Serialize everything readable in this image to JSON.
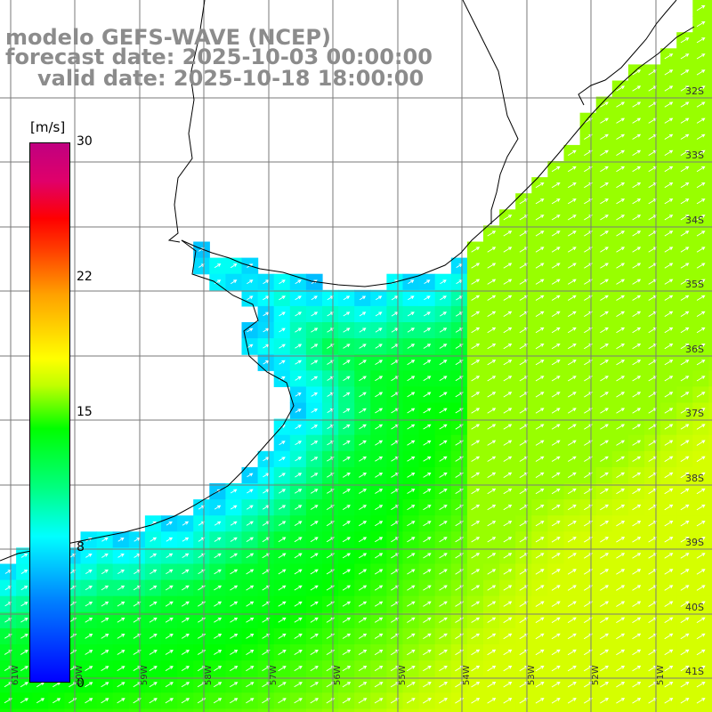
{
  "title": {
    "line1": "modelo GEFS-WAVE (NCEP)",
    "line2": "forecast date: 2025-10-03 00:00:00",
    "line3": "valid date: 2025-10-18 18:00:00"
  },
  "colorbar": {
    "unit": "[m/s]",
    "ticks": [
      "30",
      "22",
      "15",
      "8",
      "0"
    ],
    "min": 0,
    "max": 30,
    "colors": [
      "#0000ff",
      "#0080ff",
      "#00ffff",
      "#00ff80",
      "#00ff00",
      "#c0ff00",
      "#ffff00",
      "#ffa000",
      "#ff4000",
      "#ff0000",
      "#e0006a",
      "#c00080"
    ]
  },
  "axes": {
    "latitudes": [
      "32S",
      "33S",
      "34S",
      "35S",
      "36S",
      "37S",
      "38S",
      "39S",
      "40S",
      "41S"
    ],
    "longitudes": [
      "61W",
      "60W",
      "59W",
      "58W",
      "57W",
      "56W",
      "55W",
      "54W",
      "53W",
      "52W",
      "51W"
    ]
  },
  "field": {
    "variable": "wind speed",
    "direction": "south-west to north-east",
    "coast_min": 6,
    "mid_shelf": 13,
    "offshore_max": 17
  }
}
